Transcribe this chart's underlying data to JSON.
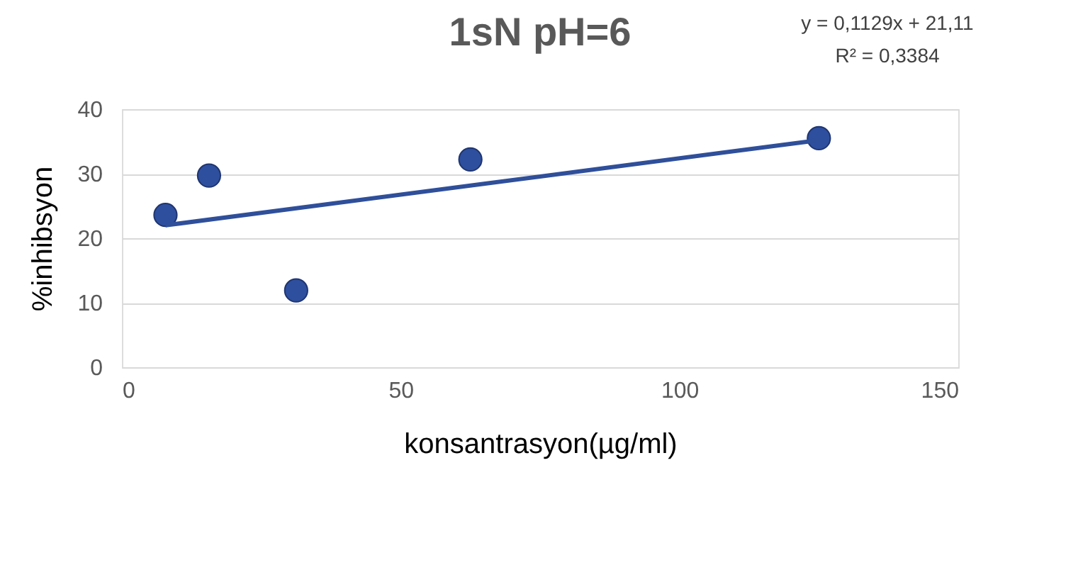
{
  "chart_data": {
    "type": "scatter",
    "title": "1sN pH=6",
    "xlabel": "konsantrasyon(µg/ml)",
    "ylabel": "%inhibsyon",
    "annotations": [
      "y = 0,1129x + 21,11",
      "R² = 0,3384"
    ],
    "x": [
      7.8125,
      15.625,
      31.25,
      62.5,
      125
    ],
    "series": [
      {
        "color": "#2e4f9e",
        "marker": "circle",
        "values": [
          23.6,
          29.7,
          11.9,
          32.2,
          35.5
        ]
      },
      {
        "type": "line",
        "marker": "none",
        "color": "#2f4f9a",
        "x": [
          7.8125,
          125
        ],
        "values": [
          22.0,
          35.2
        ]
      }
    ],
    "xlim": [
      0,
      150
    ],
    "xticks": [
      0,
      50,
      100,
      150
    ],
    "ylim": [
      0,
      40
    ],
    "yticks": [
      0,
      10,
      20,
      30,
      40
    ],
    "grid": "y"
  }
}
